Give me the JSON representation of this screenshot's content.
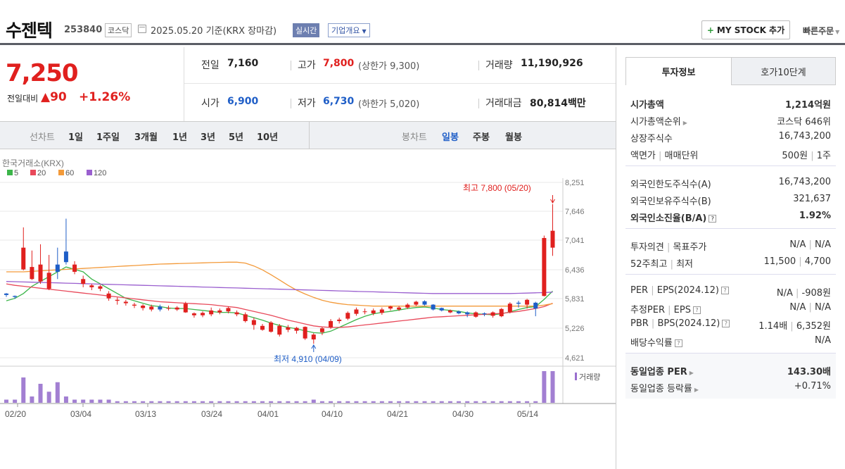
{
  "header": {
    "name": "수젠텍",
    "code": "253840",
    "market": "코스닥",
    "base_date": "2025.05.20 기준(KRX 장마감)",
    "realtime_label": "실시간",
    "overview_label": "기업개요",
    "mystock_label": "MY STOCK 추가",
    "quick_order_label": "빠른주문"
  },
  "price": {
    "current": "7,250",
    "change_label": "전일대비",
    "change": "90",
    "change_pct": "+1.26%",
    "prev_label": "전일",
    "prev": "7,160",
    "open_label": "시가",
    "open": "6,900",
    "high_label": "고가",
    "high": "7,800",
    "upper_limit": "(상한가 9,300)",
    "low_label": "저가",
    "low": "6,730",
    "lower_limit": "(하한가 5,020)",
    "volume_label": "거래량",
    "volume": "11,190,926",
    "amount_label": "거래대금",
    "amount": "80,814",
    "amount_unit": "백만"
  },
  "toolbar": {
    "line_label": "선차트",
    "line_periods": [
      "1일",
      "1주일",
      "3개월",
      "1년",
      "3년",
      "5년",
      "10년"
    ],
    "candle_label": "봉차트",
    "candle_periods": [
      "일봉",
      "주봉",
      "월봉"
    ],
    "candle_selected": "일봉"
  },
  "chart_data": {
    "type": "candlestick",
    "source_label": "한국거래소(KRX)",
    "ma_legend": [
      {
        "name": "5",
        "color": "#3cb54a"
      },
      {
        "name": "20",
        "color": "#e8495a"
      },
      {
        "name": "60",
        "color": "#f39a3a"
      },
      {
        "name": "120",
        "color": "#9a5fcf"
      }
    ],
    "y_ticks": [
      "8,251",
      "7,646",
      "7,041",
      "6,436",
      "5,831",
      "5,226",
      "4,621"
    ],
    "ylim": [
      4621,
      8251
    ],
    "x_ticks": [
      "02/20",
      "03/04",
      "03/13",
      "03/24",
      "04/01",
      "04/10",
      "04/21",
      "04/30",
      "05/14"
    ],
    "max_annotation": "최고 7,800 (05/20)",
    "min_annotation": "최저 4,910 (04/09)",
    "volume_label": "거래량",
    "colors": {
      "up": "#e0201e",
      "down": "#1f5ec7"
    },
    "candles": [
      [
        5950,
        5920,
        5880,
        5960
      ],
      [
        5900,
        5880,
        5840,
        5910
      ],
      [
        6450,
        6900,
        6430,
        7320
      ],
      [
        6250,
        6500,
        6230,
        6840
      ],
      [
        6200,
        6550,
        6150,
        6970
      ],
      [
        6050,
        6380,
        6020,
        6750
      ],
      [
        6550,
        6400,
        6250,
        6900
      ],
      [
        6820,
        6600,
        6550,
        7500
      ],
      [
        6400,
        6550,
        6350,
        6620
      ],
      [
        6150,
        6250,
        6080,
        6320
      ],
      [
        6080,
        6120,
        6020,
        6150
      ],
      [
        6050,
        6100,
        6000,
        6130
      ],
      [
        5850,
        5950,
        5800,
        6000
      ],
      [
        5800,
        5820,
        5720,
        5870
      ],
      [
        5750,
        5780,
        5700,
        5820
      ],
      [
        5700,
        5720,
        5650,
        5760
      ],
      [
        5650,
        5700,
        5600,
        5730
      ],
      [
        5620,
        5680,
        5580,
        5720
      ],
      [
        5680,
        5620,
        5580,
        5720
      ],
      [
        5640,
        5650,
        5600,
        5700
      ],
      [
        5620,
        5660,
        5590,
        5690
      ],
      [
        5560,
        5740,
        5550,
        5780
      ],
      [
        5500,
        5540,
        5450,
        5560
      ],
      [
        5500,
        5550,
        5460,
        5580
      ],
      [
        5520,
        5600,
        5480,
        5660
      ],
      [
        5560,
        5600,
        5520,
        5640
      ],
      [
        5580,
        5650,
        5540,
        5680
      ],
      [
        5520,
        5560,
        5480,
        5600
      ],
      [
        5380,
        5520,
        5350,
        5560
      ],
      [
        5300,
        5400,
        5200,
        5450
      ],
      [
        5200,
        5280,
        5180,
        5320
      ],
      [
        5160,
        5350,
        5140,
        5380
      ],
      [
        5100,
        5280,
        5060,
        5320
      ],
      [
        5200,
        5250,
        5150,
        5300
      ],
      [
        5180,
        5240,
        5120,
        5260
      ],
      [
        5020,
        5260,
        4990,
        5270
      ],
      [
        5000,
        5100,
        4910,
        5130
      ],
      [
        5150,
        5230,
        5090,
        5260
      ],
      [
        5250,
        5380,
        5220,
        5420
      ],
      [
        5380,
        5410,
        5330,
        5450
      ],
      [
        5430,
        5550,
        5400,
        5580
      ],
      [
        5530,
        5620,
        5490,
        5660
      ],
      [
        5580,
        5580,
        5520,
        5640
      ],
      [
        5540,
        5600,
        5500,
        5640
      ],
      [
        5550,
        5620,
        5510,
        5660
      ],
      [
        5640,
        5680,
        5600,
        5700
      ],
      [
        5620,
        5660,
        5590,
        5690
      ],
      [
        5660,
        5720,
        5630,
        5750
      ],
      [
        5720,
        5780,
        5690,
        5800
      ],
      [
        5790,
        5720,
        5700,
        5810
      ],
      [
        5720,
        5620,
        5600,
        5730
      ],
      [
        5650,
        5600,
        5580,
        5660
      ],
      [
        5560,
        5600,
        5540,
        5620
      ],
      [
        5580,
        5540,
        5520,
        5600
      ],
      [
        5560,
        5520,
        5460,
        5580
      ],
      [
        5470,
        5560,
        5450,
        5580
      ],
      [
        5540,
        5520,
        5480,
        5560
      ],
      [
        5490,
        5560,
        5450,
        5580
      ],
      [
        5480,
        5630,
        5460,
        5650
      ],
      [
        5570,
        5740,
        5540,
        5770
      ],
      [
        5760,
        5740,
        5660,
        5800
      ],
      [
        5720,
        5820,
        5640,
        5840
      ],
      [
        5760,
        5640,
        5480,
        5780
      ],
      [
        5900,
        7100,
        5890,
        7150
      ],
      [
        6900,
        7250,
        6730,
        7800
      ]
    ],
    "volumes": [
      0.1,
      0.1,
      0.8,
      0.2,
      0.6,
      0.35,
      0.65,
      0.2,
      0.1,
      0.1,
      0.1,
      0.1,
      0.1,
      0.05,
      0.05,
      0.05,
      0.05,
      0.05,
      0.05,
      0.05,
      0.05,
      0.05,
      0.05,
      0.05,
      0.05,
      0.05,
      0.05,
      0.05,
      0.05,
      0.05,
      0.05,
      0.05,
      0.05,
      0.05,
      0.05,
      0.05,
      0.1,
      0.05,
      0.05,
      0.05,
      0.05,
      0.05,
      0.05,
      0.05,
      0.05,
      0.05,
      0.05,
      0.05,
      0.05,
      0.05,
      0.05,
      0.05,
      0.05,
      0.05,
      0.05,
      0.05,
      0.05,
      0.05,
      0.05,
      0.05,
      0.05,
      0.05,
      0.05,
      1.0,
      1.0
    ],
    "ma": {
      "5": [
        5800,
        5850,
        5950,
        6100,
        6200,
        6300,
        6400,
        6500,
        6450,
        6400,
        6250,
        6150,
        6050,
        5950,
        5850,
        5800,
        5750,
        5700,
        5680,
        5650,
        5640,
        5640,
        5620,
        5600,
        5580,
        5560,
        5560,
        5550,
        5500,
        5450,
        5400,
        5340,
        5290,
        5250,
        5220,
        5180,
        5140,
        5130,
        5170,
        5250,
        5330,
        5410,
        5480,
        5530,
        5560,
        5580,
        5610,
        5640,
        5660,
        5670,
        5650,
        5620,
        5600,
        5580,
        5550,
        5530,
        5520,
        5510,
        5530,
        5570,
        5620,
        5660,
        5680,
        5830,
        6000
      ],
      "20": [
        6150,
        6120,
        6100,
        6080,
        6060,
        6040,
        6020,
        6000,
        5980,
        5960,
        5940,
        5920,
        5900,
        5880,
        5860,
        5840,
        5820,
        5800,
        5780,
        5770,
        5760,
        5750,
        5740,
        5730,
        5720,
        5700,
        5680,
        5660,
        5620,
        5580,
        5540,
        5500,
        5450,
        5400,
        5360,
        5320,
        5280,
        5260,
        5250,
        5250,
        5260,
        5280,
        5300,
        5320,
        5340,
        5360,
        5380,
        5400,
        5420,
        5440,
        5460,
        5470,
        5480,
        5490,
        5500,
        5510,
        5520,
        5530,
        5540,
        5560,
        5580,
        5610,
        5640,
        5680,
        5750
      ],
      "60": [
        6400,
        6400,
        6400,
        6410,
        6420,
        6430,
        6440,
        6450,
        6460,
        6470,
        6480,
        6490,
        6500,
        6510,
        6520,
        6530,
        6540,
        6550,
        6560,
        6565,
        6570,
        6575,
        6580,
        6585,
        6590,
        6595,
        6600,
        6600,
        6580,
        6520,
        6440,
        6340,
        6230,
        6120,
        6020,
        5940,
        5870,
        5810,
        5770,
        5740,
        5720,
        5710,
        5700,
        5690,
        5690,
        5690,
        5690,
        5690,
        5690,
        5690,
        5690,
        5690,
        5690,
        5690,
        5690,
        5690,
        5690,
        5690,
        5690,
        5690,
        5690,
        5690,
        5690,
        5710,
        5740
      ],
      "120": [
        6200,
        6195,
        6190,
        6185,
        6180,
        6175,
        6170,
        6165,
        6160,
        6155,
        6150,
        6145,
        6140,
        6135,
        6130,
        6125,
        6120,
        6115,
        6110,
        6105,
        6100,
        6095,
        6090,
        6085,
        6080,
        6075,
        6070,
        6065,
        6060,
        6055,
        6050,
        6045,
        6040,
        6035,
        6030,
        6025,
        6020,
        6015,
        6010,
        6005,
        6000,
        5995,
        5990,
        5985,
        5980,
        5975,
        5970,
        5965,
        5960,
        5955,
        5950,
        5950,
        5950,
        5950,
        5950,
        5950,
        5950,
        5950,
        5950,
        5950,
        5955,
        5960,
        5965,
        5970,
        5980
      ]
    }
  },
  "info_tabs": {
    "active": "투자정보",
    "other": "호가10단계"
  },
  "info": {
    "mcap_label": "시가총액",
    "mcap": "1,214억원",
    "mcap_rank_label": "시가총액순위",
    "mcap_rank": "코스닥 646위",
    "shares_label": "상장주식수",
    "shares": "16,743,200",
    "par_label": "액면가",
    "par_unit_label": "매매단위",
    "par": "500원",
    "par_unit": "1주",
    "foreign_limit_label": "외국인한도주식수(A)",
    "foreign_limit": "16,743,200",
    "foreign_own_label": "외국인보유주식수(B)",
    "foreign_own": "321,637",
    "foreign_ratio_label": "외국인소진율(B/A)",
    "foreign_ratio": "1.92%",
    "opinion_label": "투자의견",
    "target_label": "목표주가",
    "opinion": "N/A",
    "target": "N/A",
    "w52_label": "52주최고",
    "w52_low_label": "최저",
    "w52_high": "11,500",
    "w52_low": "4,700",
    "per_label": "PER",
    "eps_label": "EPS(2024.12)",
    "per": "N/A",
    "eps": "-908원",
    "est_per_label": "추정PER",
    "est_eps_label": "EPS",
    "est_per": "N/A",
    "est_eps": "N/A",
    "pbr_label": "PBR",
    "bps_label": "BPS(2024.12)",
    "pbr": "1.14배",
    "bps": "6,352원",
    "div_label": "배당수익률",
    "div": "N/A",
    "sector_per_label": "동일업종 PER",
    "sector_per": "143.30배",
    "sector_chg_label": "동일업종 등락률",
    "sector_chg": "+0.71%"
  }
}
